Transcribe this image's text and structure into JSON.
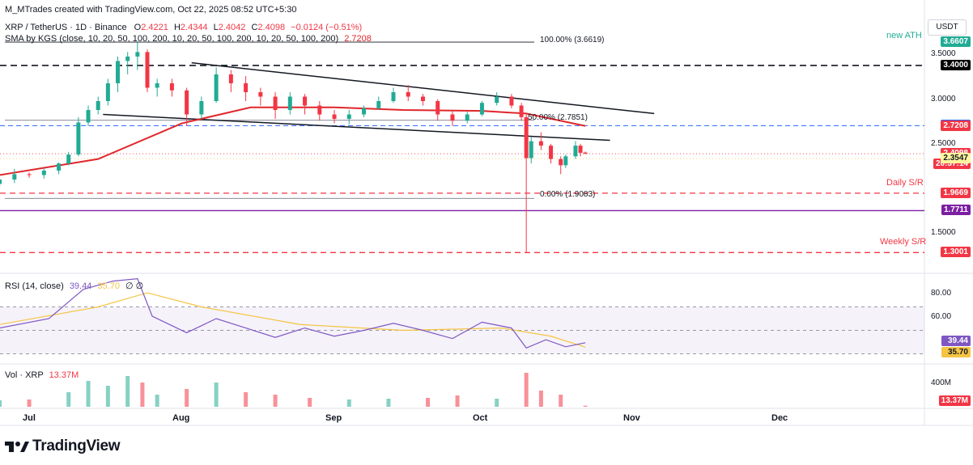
{
  "header": {
    "attribution": "M_MTrades created with TradingView.com, Oct 22, 2025 08:52 UTC+5:30",
    "symbol_line": "XRP / TetherUS · 1D · Binance",
    "ohlc": {
      "o_label": "O",
      "o": "2.4221",
      "h_label": "H",
      "h": "2.4344",
      "l_label": "L",
      "l": "2.4042",
      "c_label": "C",
      "c": "2.4098",
      "change": "−0.0124 (−0.51%)"
    },
    "sma_line": "SMA by KGS (close, 10, 20, 50, 100, 200, 10, 20, 50, 100, 200, 10, 20, 50, 100, 200)",
    "sma_value": "2.7208"
  },
  "currency": "USDT",
  "annotations": {
    "new_ath": "new ATH",
    "fib100": "100.00% (3.6619)",
    "fib50": "50.00% (2.7851)",
    "fib0": "0.00% (1.9083)",
    "daily_sr": "Daily S/R",
    "weekly_sr": "Weekly S/R"
  },
  "price_ticks": [
    "3.5000",
    "3.0000",
    "2.5000",
    "1.5000"
  ],
  "price_labels": [
    {
      "text": "3.6607",
      "bg": "#22ab94",
      "fg": "#ffffff",
      "price": 3.6607
    },
    {
      "text": "3.4000",
      "bg": "#000000",
      "fg": "#ffffff",
      "price": 3.4
    },
    {
      "text": "2.7245",
      "bg": "#2962ff",
      "fg": "#ffffff",
      "price": 2.7245
    },
    {
      "text": "2.7208",
      "bg": "#f23645",
      "fg": "#ffffff",
      "price": 2.7208
    },
    {
      "text": "2.4098",
      "bg": "#f23645",
      "fg": "#ffffff",
      "price": 2.4098
    },
    {
      "text": "20:37:14",
      "bg": "#f23645",
      "fg": "#ffffff",
      "price": 2.4098,
      "sub": true
    },
    {
      "text": "2.3547",
      "bg": "#fff59d",
      "fg": "#131722",
      "price": 2.3547
    },
    {
      "text": "1.9669",
      "bg": "#f23645",
      "fg": "#ffffff",
      "price": 1.9669
    },
    {
      "text": "1.7711",
      "bg": "#7b1fa2",
      "fg": "#ffffff",
      "price": 1.7711
    },
    {
      "text": "1.3001",
      "bg": "#f23645",
      "fg": "#ffffff",
      "price": 1.3001
    }
  ],
  "rsi": {
    "title": "RSI (14, close)",
    "value": "39.44",
    "ma_value": "35.70",
    "extra": "∅ ∅",
    "ticks": [
      "80.00",
      "60.00"
    ],
    "label_rsi": "39.44",
    "label_ma": "35.70"
  },
  "volume": {
    "title": "Vol · XRP",
    "value": "13.37M",
    "tick": "400M",
    "label": "13.37M"
  },
  "x_ticks": [
    "Jul",
    "Aug",
    "Sep",
    "Oct",
    "Nov",
    "Dec"
  ],
  "footer": {
    "logo_text": "TradingView"
  },
  "colors": {
    "up": "#22ab94",
    "down": "#f23645",
    "sma": "#e0262b",
    "rsi": "#7e57c2",
    "rsi_ma": "#f5c442",
    "purple_sr": "#7b1fa2"
  },
  "chart_data": {
    "type": "candlestick",
    "title": "XRP / TetherUS · 1D · Binance",
    "price_range": [
      1.15,
      3.95
    ],
    "horizontal_levels": [
      {
        "name": "100.00% (3.6619)",
        "price": 3.6619,
        "style": "solid-black-thin"
      },
      {
        "name": "Resistance",
        "price": 3.4,
        "style": "dashed-black"
      },
      {
        "name": "50.00% (2.7851)",
        "price": 2.7851,
        "style": "solid-gray-thin"
      },
      {
        "name": "Blue level",
        "price": 2.7245,
        "style": "dashed-blue"
      },
      {
        "name": "Daily S/R",
        "price": 1.9669,
        "style": "dashed-red"
      },
      {
        "name": "0.00% (1.9083)",
        "price": 1.9083,
        "style": "solid-gray-thin"
      },
      {
        "name": "Purple level",
        "price": 1.7711,
        "style": "solid-purple"
      },
      {
        "name": "Weekly S/R",
        "price": 1.3001,
        "style": "dashed-red"
      }
    ],
    "channel": {
      "upper": [
        {
          "date": "2025-08-03",
          "price": 3.43
        },
        {
          "date": "2025-11-05",
          "price": 2.86
        }
      ],
      "lower": [
        {
          "date": "2025-07-16",
          "price": 2.85
        },
        {
          "date": "2025-10-27",
          "price": 2.56
        }
      ]
    },
    "ohlc": [
      [
        "2025-06-25",
        2.07,
        2.15,
        2.03,
        2.12
      ],
      [
        "2025-06-28",
        2.12,
        2.24,
        2.08,
        2.18
      ],
      [
        "2025-07-01",
        2.18,
        2.2,
        2.14,
        2.17
      ],
      [
        "2025-07-04",
        2.17,
        2.25,
        2.13,
        2.22
      ],
      [
        "2025-07-07",
        2.22,
        2.31,
        2.18,
        2.3
      ],
      [
        "2025-07-09",
        2.3,
        2.43,
        2.28,
        2.4
      ],
      [
        "2025-07-11",
        2.4,
        2.82,
        2.38,
        2.76
      ],
      [
        "2025-07-13",
        2.76,
        2.95,
        2.72,
        2.9
      ],
      [
        "2025-07-15",
        2.9,
        3.05,
        2.85,
        3.0
      ],
      [
        "2025-07-17",
        3.0,
        3.25,
        2.95,
        3.2
      ],
      [
        "2025-07-19",
        3.2,
        3.5,
        3.1,
        3.45
      ],
      [
        "2025-07-21",
        3.45,
        3.55,
        3.3,
        3.5
      ],
      [
        "2025-07-23",
        3.5,
        3.66,
        3.35,
        3.55
      ],
      [
        "2025-07-25",
        3.55,
        3.58,
        3.1,
        3.15
      ],
      [
        "2025-07-27",
        3.15,
        3.25,
        3.05,
        3.2
      ],
      [
        "2025-07-30",
        3.2,
        3.25,
        3.05,
        3.12
      ],
      [
        "2025-08-02",
        3.12,
        3.15,
        2.72,
        2.85
      ],
      [
        "2025-08-05",
        2.85,
        3.05,
        2.8,
        3.0
      ],
      [
        "2025-08-08",
        3.0,
        3.38,
        2.98,
        3.3
      ],
      [
        "2025-08-11",
        3.3,
        3.35,
        3.1,
        3.2
      ],
      [
        "2025-08-14",
        3.2,
        3.28,
        3.0,
        3.1
      ],
      [
        "2025-08-17",
        3.1,
        3.15,
        2.95,
        3.05
      ],
      [
        "2025-08-20",
        3.05,
        3.1,
        2.8,
        2.9
      ],
      [
        "2025-08-23",
        2.9,
        3.1,
        2.85,
        3.05
      ],
      [
        "2025-08-26",
        3.05,
        3.08,
        2.85,
        2.95
      ],
      [
        "2025-08-29",
        2.95,
        3.0,
        2.78,
        2.85
      ],
      [
        "2025-09-01",
        2.85,
        2.9,
        2.75,
        2.8
      ],
      [
        "2025-09-04",
        2.8,
        2.9,
        2.74,
        2.85
      ],
      [
        "2025-09-07",
        2.85,
        2.95,
        2.82,
        2.92
      ],
      [
        "2025-09-10",
        2.92,
        3.05,
        2.9,
        3.0
      ],
      [
        "2025-09-13",
        3.0,
        3.15,
        2.98,
        3.1
      ],
      [
        "2025-09-16",
        3.1,
        3.18,
        3.0,
        3.05
      ],
      [
        "2025-09-19",
        3.05,
        3.08,
        2.95,
        3.0
      ],
      [
        "2025-09-22",
        3.0,
        3.02,
        2.78,
        2.85
      ],
      [
        "2025-09-25",
        2.85,
        2.9,
        2.72,
        2.78
      ],
      [
        "2025-09-28",
        2.78,
        2.88,
        2.75,
        2.85
      ],
      [
        "2025-10-01",
        2.85,
        3.0,
        2.83,
        2.98
      ],
      [
        "2025-10-04",
        2.98,
        3.1,
        2.95,
        3.05
      ],
      [
        "2025-10-07",
        3.05,
        3.08,
        2.92,
        2.95
      ],
      [
        "2025-10-09",
        2.95,
        2.98,
        2.78,
        2.82
      ],
      [
        "2025-10-10",
        2.82,
        2.85,
        1.3,
        2.36
      ],
      [
        "2025-10-11",
        2.36,
        2.6,
        2.3,
        2.55
      ],
      [
        "2025-10-13",
        2.55,
        2.65,
        2.45,
        2.5
      ],
      [
        "2025-10-15",
        2.5,
        2.52,
        2.3,
        2.35
      ],
      [
        "2025-10-17",
        2.35,
        2.38,
        2.18,
        2.28
      ],
      [
        "2025-10-18",
        2.28,
        2.4,
        2.25,
        2.38
      ],
      [
        "2025-10-20",
        2.38,
        2.55,
        2.35,
        2.5
      ],
      [
        "2025-10-21",
        2.5,
        2.52,
        2.38,
        2.42
      ],
      [
        "2025-10-22",
        2.4221,
        2.4344,
        2.4042,
        2.4098
      ]
    ],
    "sma": [
      [
        "2025-06-25",
        2.17
      ],
      [
        "2025-07-15",
        2.35
      ],
      [
        "2025-08-01",
        2.75
      ],
      [
        "2025-08-15",
        2.93
      ],
      [
        "2025-09-01",
        2.93
      ],
      [
        "2025-09-15",
        2.9
      ],
      [
        "2025-10-01",
        2.89
      ],
      [
        "2025-10-10",
        2.86
      ],
      [
        "2025-10-22",
        2.7208
      ]
    ],
    "rsi": {
      "range": [
        20,
        100
      ],
      "series": [
        [
          "2025-06-25",
          52
        ],
        [
          "2025-07-05",
          60
        ],
        [
          "2025-07-12",
          85
        ],
        [
          "2025-07-18",
          92
        ],
        [
          "2025-07-23",
          94
        ],
        [
          "2025-07-26",
          62
        ],
        [
          "2025-08-02",
          48
        ],
        [
          "2025-08-08",
          60
        ],
        [
          "2025-08-14",
          52
        ],
        [
          "2025-08-20",
          44
        ],
        [
          "2025-08-26",
          52
        ],
        [
          "2025-09-01",
          45
        ],
        [
          "2025-09-07",
          50
        ],
        [
          "2025-09-13",
          56
        ],
        [
          "2025-09-19",
          50
        ],
        [
          "2025-09-25",
          43
        ],
        [
          "2025-10-01",
          57
        ],
        [
          "2025-10-07",
          52
        ],
        [
          "2025-10-10",
          35
        ],
        [
          "2025-10-14",
          42
        ],
        [
          "2025-10-18",
          36
        ],
        [
          "2025-10-22",
          39.44
        ]
      ],
      "ma": [
        [
          "2025-06-25",
          55
        ],
        [
          "2025-07-15",
          70
        ],
        [
          "2025-07-25",
          82
        ],
        [
          "2025-08-05",
          70
        ],
        [
          "2025-08-25",
          55
        ],
        [
          "2025-09-15",
          50
        ],
        [
          "2025-10-05",
          52
        ],
        [
          "2025-10-15",
          45
        ],
        [
          "2025-10-22",
          35.7
        ]
      ]
    },
    "volume": [
      [
        "2025-06-25",
        80
      ],
      [
        "2025-07-01",
        90
      ],
      [
        "2025-07-09",
        180
      ],
      [
        "2025-07-13",
        320
      ],
      [
        "2025-07-17",
        260
      ],
      [
        "2025-07-21",
        380
      ],
      [
        "2025-07-24",
        300
      ],
      [
        "2025-07-27",
        150
      ],
      [
        "2025-08-02",
        220
      ],
      [
        "2025-08-08",
        300
      ],
      [
        "2025-08-14",
        180
      ],
      [
        "2025-08-20",
        150
      ],
      [
        "2025-08-27",
        110
      ],
      [
        "2025-09-04",
        90
      ],
      [
        "2025-09-12",
        100
      ],
      [
        "2025-09-20",
        110
      ],
      [
        "2025-09-26",
        140
      ],
      [
        "2025-10-04",
        100
      ],
      [
        "2025-10-10",
        420
      ],
      [
        "2025-10-13",
        200
      ],
      [
        "2025-10-17",
        150
      ],
      [
        "2025-10-22",
        13.37
      ]
    ]
  }
}
